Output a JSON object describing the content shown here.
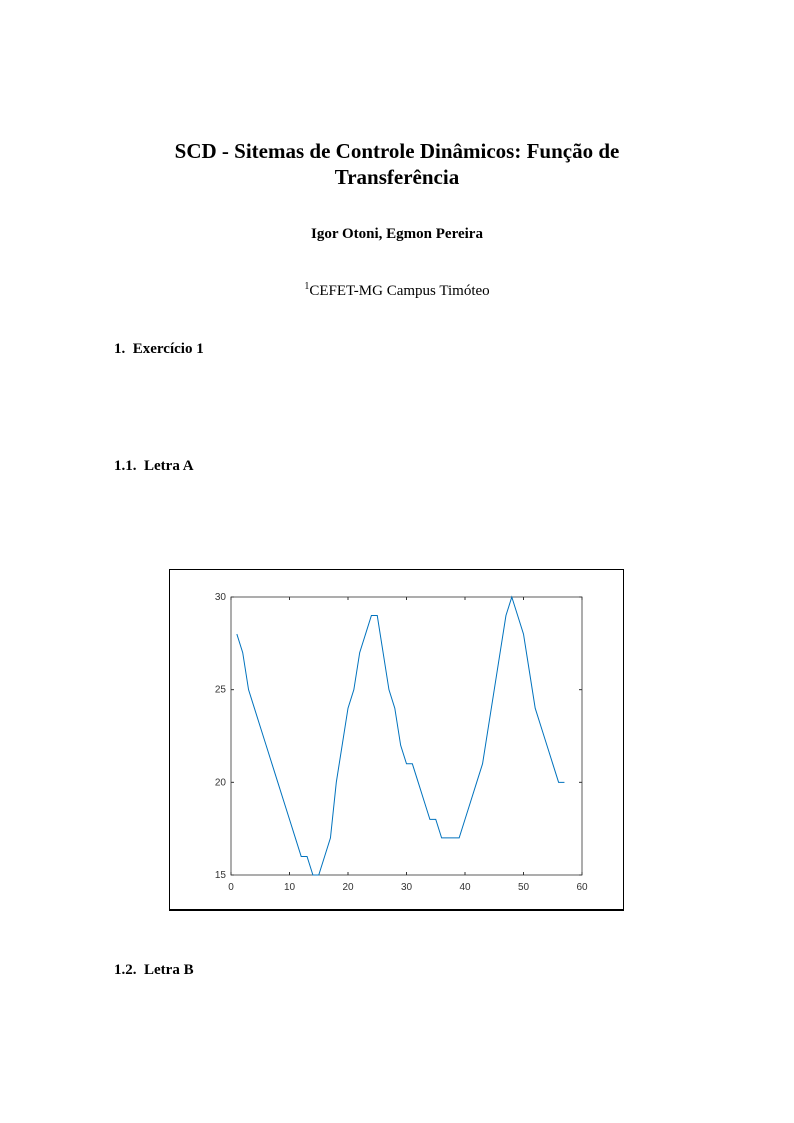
{
  "title": "SCD - Sitemas de Controle Dinâmicos: Função de Transferência",
  "authors": "Igor Otoni, Egmon Pereira",
  "affiliation_mark": "1",
  "affiliation": "CEFET-MG Campus Timóteo",
  "sections": [
    {
      "number": "1.",
      "label": "Exercício 1"
    },
    {
      "number": "1.1.",
      "label": "Letra A"
    },
    {
      "number": "1.2.",
      "label": "Letra B"
    }
  ],
  "chart_data": {
    "type": "line",
    "title": "",
    "xlabel": "",
    "ylabel": "",
    "xlim": [
      0,
      60
    ],
    "ylim": [
      15,
      30
    ],
    "xticks": [
      0,
      10,
      20,
      30,
      40,
      50,
      60
    ],
    "yticks": [
      15,
      20,
      25,
      30
    ],
    "grid": false,
    "color": "#0072bd",
    "x": [
      1,
      2,
      3,
      4,
      5,
      6,
      7,
      8,
      9,
      10,
      11,
      12,
      13,
      14,
      15,
      16,
      17,
      18,
      19,
      20,
      21,
      22,
      23,
      24,
      25,
      26,
      27,
      28,
      29,
      30,
      31,
      32,
      33,
      34,
      35,
      36,
      37,
      38,
      39,
      40,
      41,
      42,
      43,
      44,
      45,
      46,
      47,
      48,
      49,
      50,
      51,
      52,
      53,
      54,
      55,
      56,
      57
    ],
    "y": [
      28,
      27,
      25,
      24,
      23,
      22,
      21,
      20,
      19,
      18,
      17,
      16,
      16,
      15,
      15,
      16,
      17,
      20,
      22,
      24,
      25,
      27,
      28,
      29,
      29,
      27,
      25,
      24,
      22,
      21,
      21,
      20,
      19,
      18,
      18,
      17,
      17,
      17,
      17,
      18,
      19,
      20,
      21,
      23,
      25,
      27,
      29,
      30,
      29,
      28,
      26,
      24,
      23,
      22,
      21,
      20,
      20
    ]
  }
}
